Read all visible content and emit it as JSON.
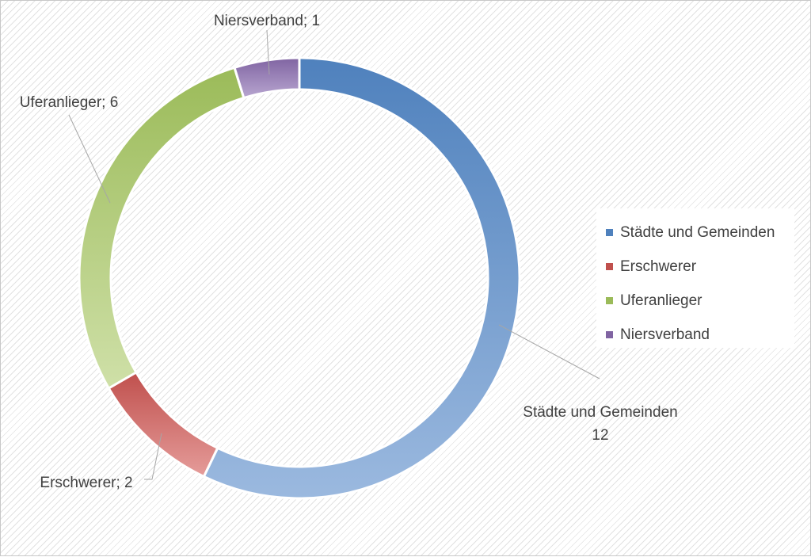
{
  "chart_data": {
    "type": "pie",
    "variant": "doughnut",
    "categories": [
      "Städte und Gemeinden",
      "Erschwerer",
      "Uferanlieger",
      "Niersverband"
    ],
    "values": [
      12,
      2,
      6,
      1
    ],
    "data_labels": [
      "Städte und Gemeinden; 12",
      "Erschwerer; 2",
      "Uferanlieger; 6",
      "Niersverband; 1"
    ],
    "colors": [
      "#4f81bd",
      "#c0504d",
      "#9bbb59",
      "#8064a2"
    ],
    "legend_position": "right",
    "title": ""
  }
}
